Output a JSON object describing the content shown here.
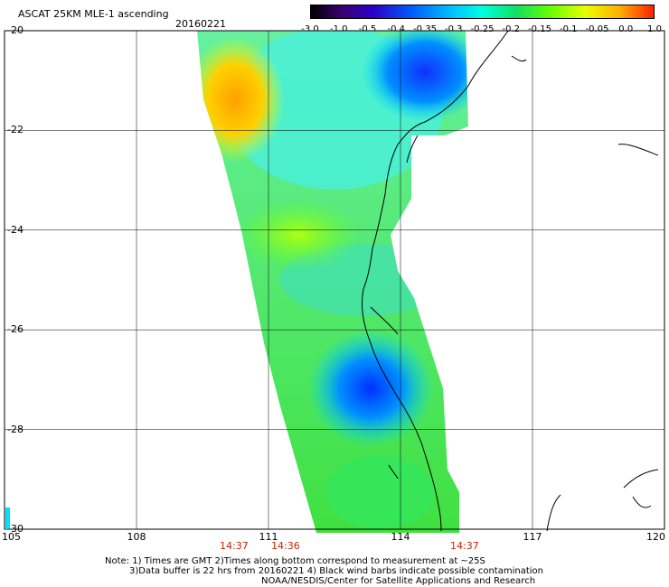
{
  "header": {
    "title": "ASCAT 25KM MLE-1 ascending",
    "date": "20160221"
  },
  "colorbar": {
    "labels": [
      "-3.0",
      "-1.0",
      "-0.5",
      "-0.4",
      "-0.35",
      "-0.3",
      "-0.25",
      "-0.2",
      "-0.15",
      "-0.1",
      "-0.05",
      "0.0",
      "1.0"
    ],
    "colors": [
      "#000000",
      "#3a0070",
      "#2a00c8",
      "#0060ff",
      "#00c8ff",
      "#00ffe0",
      "#10e060",
      "#6aff00",
      "#e8ff00",
      "#ffb000",
      "#ff2000"
    ]
  },
  "map": {
    "lat_labels": [
      "-20",
      "-22",
      "-24",
      "-26",
      "-28",
      "-30"
    ],
    "lon_labels": [
      "105",
      "108",
      "111",
      "114",
      "117",
      "120"
    ],
    "lat_range": [
      -30,
      -20
    ],
    "lon_range": [
      105,
      120
    ],
    "grid": true,
    "times": [
      "14:37",
      "14:36",
      "14:37"
    ]
  },
  "notes": {
    "line1": "Note: 1) Times are GMT 2)Times along bottom correspond to measurement at ~25S",
    "line2": "3)Data buffer is 22 hrs from 20160221 4) Black wind barbs indicate possible contamination",
    "line3": "NOAA/NESDIS/Center for Satellite Applications and Research"
  }
}
